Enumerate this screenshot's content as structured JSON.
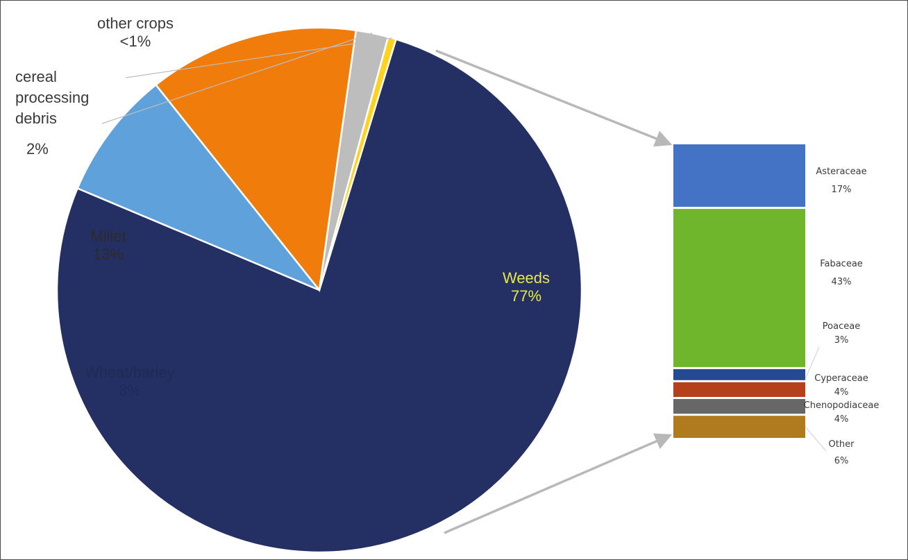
{
  "chart_data": [
    {
      "type": "pie",
      "slices": [
        {
          "name": "Weeds",
          "value": 77,
          "label": "Weeds",
          "pct_label": "77%",
          "color": "#242F63",
          "label_color": "#E8E84A"
        },
        {
          "name": "Wheat/barley",
          "value": 8,
          "label": "Wheat/barley",
          "pct_label": "8%",
          "color": "#5FA2DB",
          "label_color": "#1F2A55"
        },
        {
          "name": "Millet",
          "value": 13,
          "label": "Millet",
          "pct_label": "13%",
          "color": "#F07C0C",
          "label_color": "#2B2B2B"
        },
        {
          "name": "cereal processing debris",
          "value": 2,
          "label_lines": [
            "cereal",
            "processing",
            "debris"
          ],
          "pct_label": "2%",
          "color": "#BDBDBD",
          "label_color": "#3A3A3A"
        },
        {
          "name": "other crops",
          "value": 0.5,
          "label": "other crops",
          "pct_label": "<1%",
          "color": "#FFD21F",
          "label_color": "#3A3A3A"
        }
      ]
    },
    {
      "type": "bar",
      "stacked": true,
      "segments": [
        {
          "name": "Asteraceae",
          "value": 17,
          "pct_label": "17%",
          "color": "#4472C4"
        },
        {
          "name": "Fabaceae",
          "value": 43,
          "pct_label": "43%",
          "color": "#70B62C"
        },
        {
          "name": "Poaceae",
          "value": 3,
          "pct_label": "3%",
          "color": "#244A94"
        },
        {
          "name": "Cyperaceae",
          "value": 4,
          "pct_label": "4%",
          "color": "#B5401C"
        },
        {
          "name": "Chenopodiaceae",
          "value": 4,
          "pct_label": "4%",
          "color": "#676767"
        },
        {
          "name": "Other",
          "value": 6,
          "pct_label": "6%",
          "color": "#B07A1E"
        }
      ]
    }
  ],
  "connector_color": "#B8B8B8"
}
